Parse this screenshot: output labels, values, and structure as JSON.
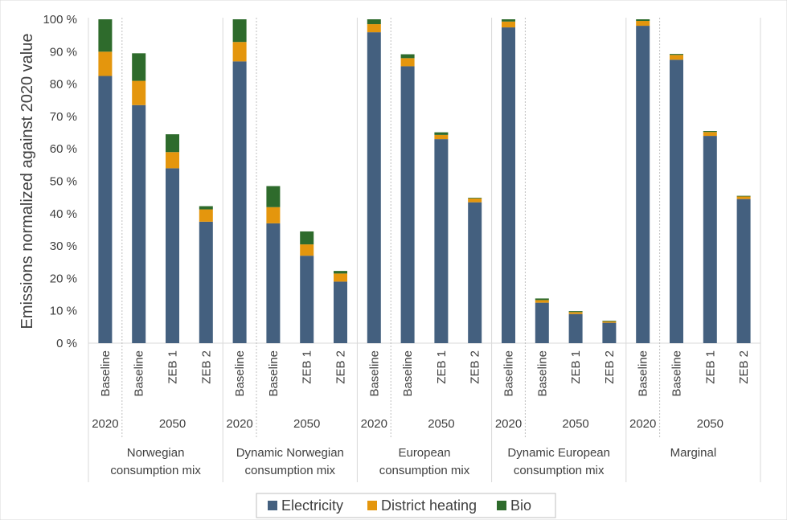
{
  "chart_data": {
    "type": "bar",
    "stacked": true,
    "ylabel": "Emissions normalized against 2020 value",
    "ylim": [
      0,
      100
    ],
    "yticks": [
      0,
      10,
      20,
      30,
      40,
      50,
      60,
      70,
      80,
      90,
      100
    ],
    "ytick_suffix": " %",
    "grid": false,
    "legend_position": "bottom",
    "groups": [
      {
        "label_lines": [
          "Norwegian",
          "consumption mix"
        ],
        "years": [
          "2020",
          "2050"
        ]
      },
      {
        "label_lines": [
          "Dynamic Norwegian",
          "consumption mix"
        ],
        "years": [
          "2020",
          "2050"
        ]
      },
      {
        "label_lines": [
          "European",
          "consumption mix"
        ],
        "years": [
          "2020",
          "2050"
        ]
      },
      {
        "label_lines": [
          "Dynamic European",
          "consumption mix"
        ],
        "years": [
          "2020",
          "2050"
        ]
      },
      {
        "label_lines": [
          "Marginal"
        ],
        "years": [
          "2020",
          "2050"
        ]
      }
    ],
    "categories": [
      "Baseline",
      "Baseline",
      "ZEB 1",
      "ZEB 2",
      "Baseline",
      "Baseline",
      "ZEB 1",
      "ZEB 2",
      "Baseline",
      "Baseline",
      "ZEB 1",
      "ZEB 2",
      "Baseline",
      "Baseline",
      "ZEB 1",
      "ZEB 2",
      "Baseline",
      "Baseline",
      "ZEB 1",
      "ZEB 2"
    ],
    "series": [
      {
        "name": "Electricity",
        "color": "#44607f",
        "values": [
          82.5,
          73.5,
          54,
          37.5,
          87,
          37,
          27,
          19,
          96,
          85.5,
          63,
          43.5,
          97.5,
          12.5,
          9,
          6.3,
          98,
          87.5,
          64,
          44.5
        ]
      },
      {
        "name": "District heating",
        "color": "#e4960d",
        "values": [
          7.5,
          7.5,
          5,
          3.8,
          6,
          5,
          3.5,
          2.5,
          2.5,
          2.5,
          1.3,
          1.2,
          1.8,
          0.8,
          0.6,
          0.4,
          1.5,
          1.5,
          1.2,
          0.8
        ]
      },
      {
        "name": "Bio",
        "color": "#2e6b2c",
        "values": [
          10,
          8.5,
          5.5,
          1,
          7,
          6.5,
          4,
          0.8,
          1.5,
          1.2,
          0.8,
          0.2,
          0.7,
          0.5,
          0.3,
          0.2,
          0.5,
          0.3,
          0.3,
          0.2
        ]
      }
    ]
  }
}
